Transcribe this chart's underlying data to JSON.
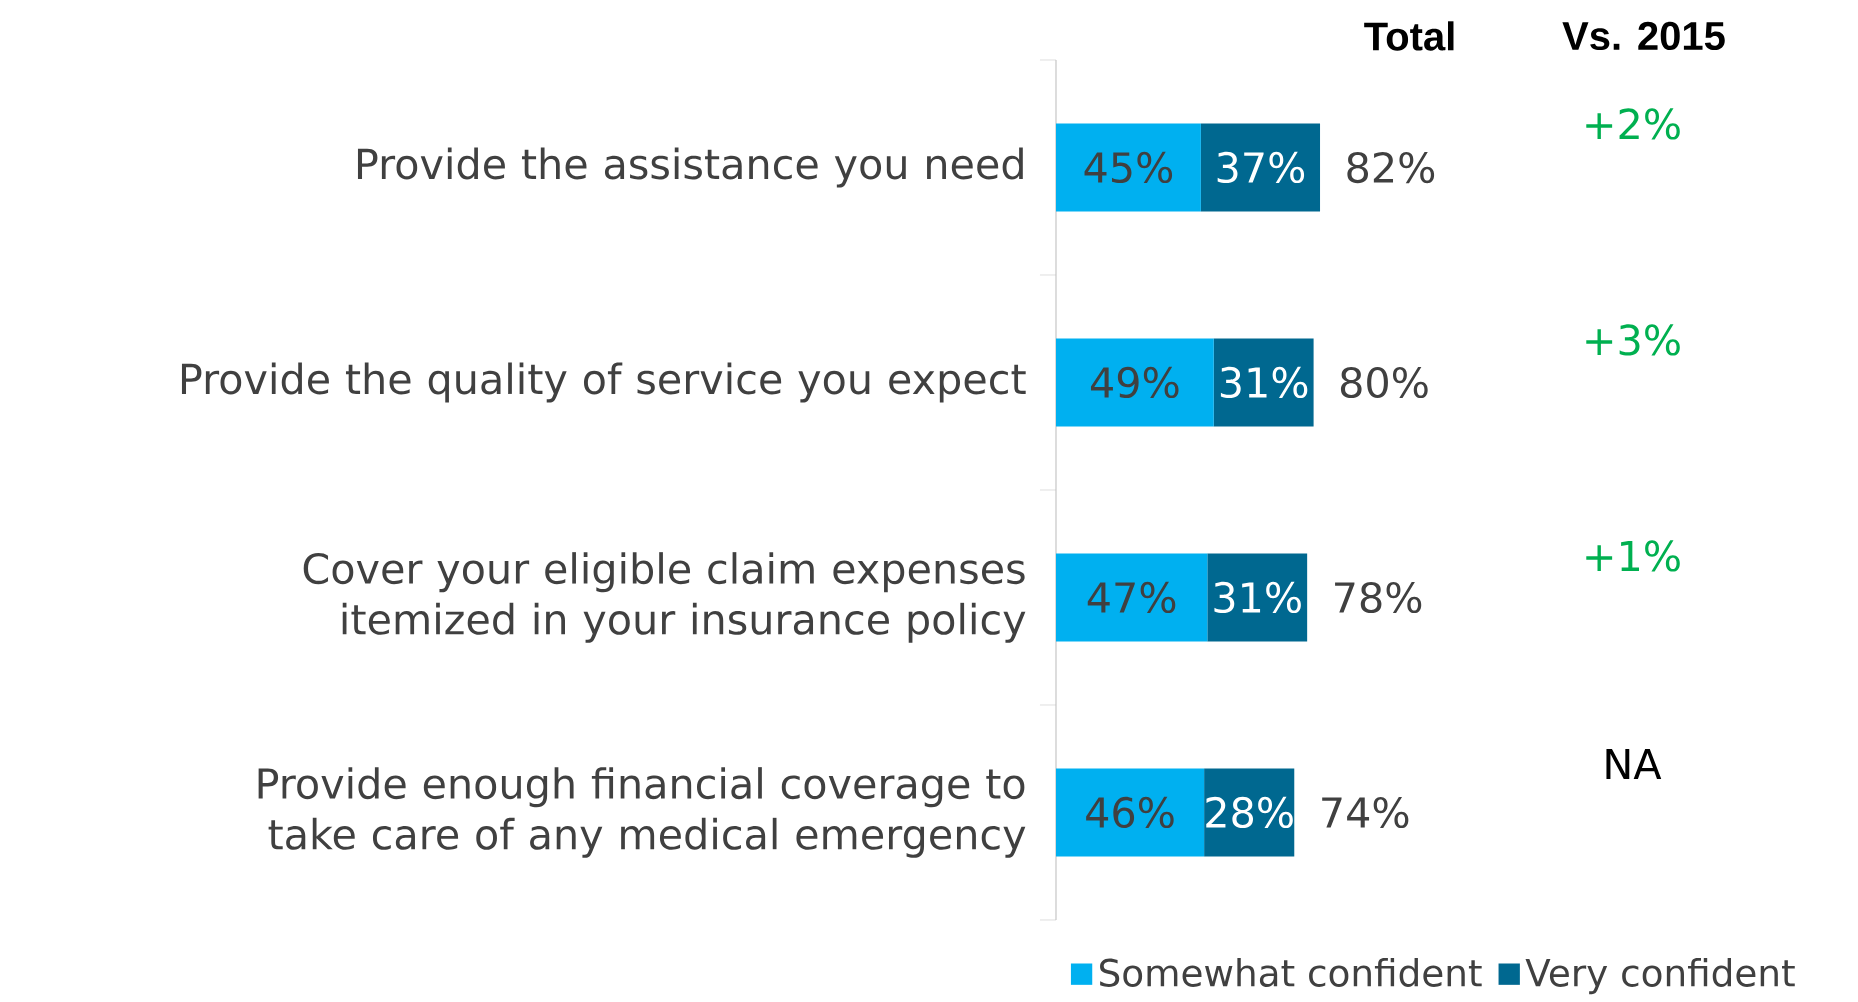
{
  "chart_data": {
    "type": "bar",
    "orientation": "horizontal",
    "stacked": true,
    "categories": [
      "Provide the assistance you need",
      "Provide the quality of service you expect",
      "Cover your eligible claim expenses itemized in your insurance policy",
      "Provide enough financial coverage to take care of any medical emergency"
    ],
    "series": [
      {
        "name": "Somewhat confident",
        "color": "#00b0f0",
        "values": [
          45,
          49,
          47,
          46
        ],
        "value_labels": [
          "45%",
          "49%",
          "47%",
          "46%"
        ]
      },
      {
        "name": "Very confident",
        "color": "#006890",
        "values": [
          37,
          31,
          31,
          28
        ],
        "value_labels": [
          "37%",
          "31%",
          "31%",
          "28%"
        ]
      }
    ],
    "totals": [
      "82%",
      "80%",
      "78%",
      "74%"
    ],
    "annotations": [
      "Total",
      "Vs. 2015",
      "+2%",
      "+3%",
      "+1%",
      "NA"
    ],
    "legend": "bottom right"
  }
}
